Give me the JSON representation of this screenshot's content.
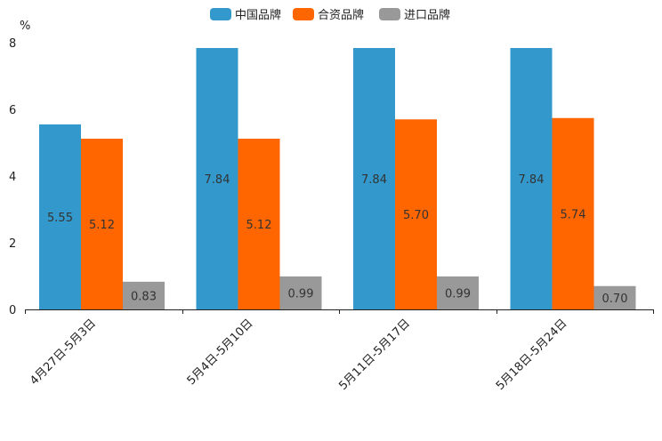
{
  "chart_data": {
    "type": "bar",
    "title": "",
    "xlabel": "",
    "ylabel": "%",
    "ylim": [
      0,
      8
    ],
    "yticks": [
      0,
      2,
      4,
      6,
      8
    ],
    "grid": false,
    "legend_position": "top-center",
    "categories": [
      "4月27日-5月3日",
      "5月4日-5月10日",
      "5月11日-5月17日",
      "5月18日-5月24日"
    ],
    "series": [
      {
        "name": "中国品牌",
        "color": "#3399cc",
        "values": [
          5.55,
          7.84,
          7.84,
          7.84
        ],
        "labels": [
          "5.55",
          "7.84",
          "7.84",
          "7.84"
        ]
      },
      {
        "name": "合资品牌",
        "color": "#ff6600",
        "values": [
          5.12,
          5.12,
          5.7,
          5.74
        ],
        "labels": [
          "5.12",
          "5.12",
          "5.70",
          "5.74"
        ]
      },
      {
        "name": "进口品牌",
        "color": "#999999",
        "values": [
          0.83,
          0.99,
          0.99,
          0.7
        ],
        "labels": [
          "0.83",
          "0.99",
          "0.99",
          "0.70"
        ]
      }
    ]
  }
}
